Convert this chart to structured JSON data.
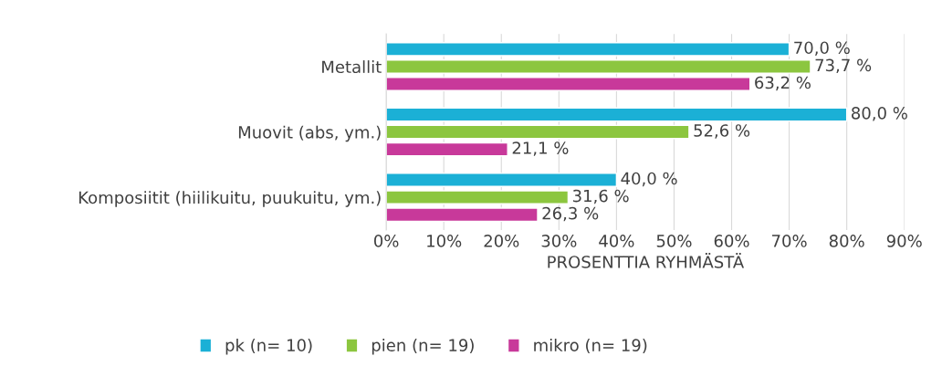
{
  "chart_data": {
    "type": "bar",
    "orientation": "horizontal",
    "xlabel": "PROSENTTIA RYHMÄSTÄ",
    "categories": [
      "Metallit",
      "Muovit (abs, ym.)",
      "Komposiitit (hiilikuitu, puukuitu, ym.)"
    ],
    "series": [
      {
        "name": "pk (n= 10)",
        "color": "#1bb0d6",
        "values": [
          70.0,
          80.0,
          40.0
        ],
        "value_labels": [
          "70,0 %",
          "80,0 %",
          "40,0 %"
        ]
      },
      {
        "name": "pien (n= 19)",
        "color": "#8cc63f",
        "values": [
          73.7,
          52.6,
          31.6
        ],
        "value_labels": [
          "73,7 %",
          "52,6 %",
          "31,6 %"
        ]
      },
      {
        "name": "mikro (n= 19)",
        "color": "#c8399a",
        "values": [
          63.2,
          21.1,
          26.3
        ],
        "value_labels": [
          "63,2 %",
          "21,1 %",
          "26,3 %"
        ]
      }
    ],
    "xlim": [
      0,
      90
    ],
    "xticks": [
      {
        "value": 0,
        "label": "0%"
      },
      {
        "value": 10,
        "label": "10%"
      },
      {
        "value": 20,
        "label": "20%"
      },
      {
        "value": 30,
        "label": "30%"
      },
      {
        "value": 40,
        "label": "40%"
      },
      {
        "value": 50,
        "label": "50%"
      },
      {
        "value": 60,
        "label": "60%"
      },
      {
        "value": 70,
        "label": "70%"
      },
      {
        "value": 80,
        "label": "80%"
      },
      {
        "value": 90,
        "label": "90%"
      }
    ],
    "grid": "x",
    "legend": "bottom"
  }
}
